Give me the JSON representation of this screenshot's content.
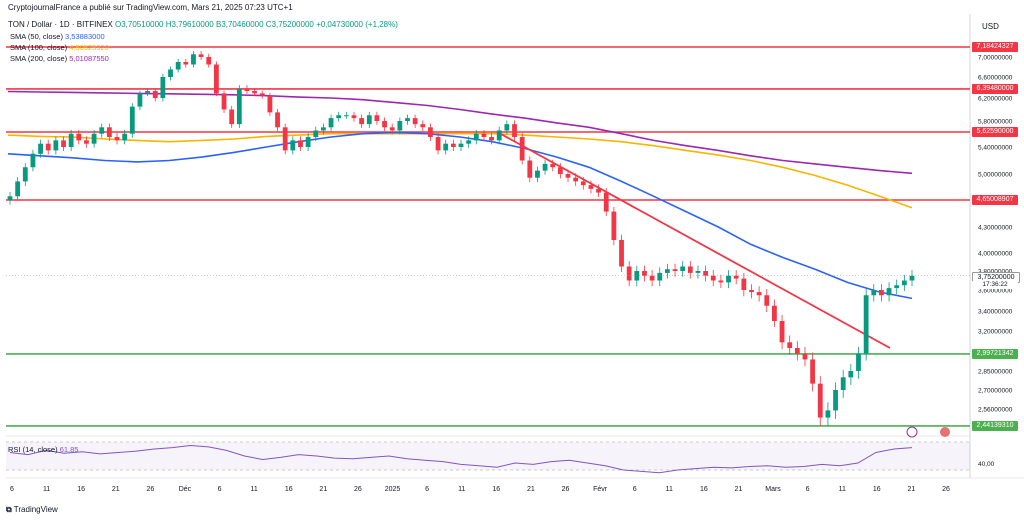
{
  "header": {
    "published": "CryptojournalFrance a publié sur TradingView.com, Mars 21, 2025 07:23 UTC+1",
    "symbol": "TON / Dollar · 1D · BITFINEX",
    "ohlc": "O3,70510000 H3,79610000 B3,70460000 C3,75200000 +0,04730000 (+1,28%)"
  },
  "indicators": {
    "sma50_label": "SMA (50, close)",
    "sma50_value": "3,53883000",
    "sma100_label": "SMA (100, close)",
    "sma100_value": "4,50525920",
    "sma200_label": "SMA (200, close)",
    "sma200_value": "5,01087550",
    "rsi_label": "RSI (14, close)",
    "rsi_value": "61,85"
  },
  "currency": "USD",
  "colors": {
    "up": "#089981",
    "down": "#f23645",
    "sma50": "#2962ff",
    "sma100": "#f7b500",
    "sma200": "#9c27b0",
    "resistance": "#f23645",
    "support": "#4caf50",
    "trendline": "#f23645"
  },
  "price_tags": {
    "r1": "7,18424327",
    "r2": "6,39480000",
    "r3": "5,62590000",
    "r4": "4,65008907",
    "current": "3,75200000",
    "countdown": "17:36:22",
    "s1": "2,99721342",
    "s2": "2,44139310"
  },
  "footer": {
    "brand": "TradingView"
  },
  "chart_data": {
    "type": "candlestick",
    "x": [
      "6",
      "11",
      "16",
      "21",
      "26",
      "Déc",
      "6",
      "11",
      "16",
      "21",
      "26",
      "2025",
      "6",
      "11",
      "16",
      "21",
      "26",
      "Févr",
      "6",
      "11",
      "16",
      "21",
      "Mars",
      "6",
      "11",
      "16",
      "21",
      "26"
    ],
    "y_ticks": [
      "7,00000000",
      "6,60000000",
      "6,20000000",
      "5,80000000",
      "5,40000000",
      "5,00000000",
      "4,30000000",
      "4,00000000",
      "3,80000000",
      "3,60000000",
      "3,40000000",
      "3,20000000",
      "2,85000000",
      "2,70000000",
      "2,56000000"
    ],
    "resistance_levels": [
      7.18424327,
      6.3948,
      5.6259,
      4.65008907
    ],
    "support_levels": [
      2.99721342,
      2.4413931
    ],
    "last_close": 3.752,
    "closes": [
      4.7,
      4.9,
      5.1,
      5.3,
      5.45,
      5.35,
      5.5,
      5.4,
      5.6,
      5.5,
      5.45,
      5.6,
      5.7,
      5.55,
      5.5,
      5.6,
      6.05,
      6.3,
      6.35,
      6.2,
      6.6,
      6.75,
      6.9,
      6.85,
      7.05,
      7.0,
      6.85,
      6.3,
      6.0,
      5.75,
      6.4,
      6.35,
      6.3,
      6.25,
      5.95,
      5.7,
      5.35,
      5.5,
      5.4,
      5.55,
      5.65,
      5.7,
      5.85,
      5.9,
      5.9,
      5.85,
      5.75,
      5.9,
      5.8,
      5.7,
      5.65,
      5.8,
      5.85,
      5.75,
      5.7,
      5.55,
      5.35,
      5.45,
      5.4,
      5.45,
      5.5,
      5.6,
      5.55,
      5.5,
      5.65,
      5.75,
      5.55,
      5.2,
      4.95,
      5.05,
      5.15,
      5.1,
      5.0,
      4.95,
      4.9,
      4.85,
      4.8,
      4.75,
      4.5,
      4.15,
      3.85,
      3.7,
      3.8,
      3.75,
      3.7,
      3.78,
      3.82,
      3.8,
      3.85,
      3.78,
      3.8,
      3.75,
      3.7,
      3.68,
      3.75,
      3.72,
      3.6,
      3.58,
      3.55,
      3.45,
      3.3,
      3.1,
      3.05,
      3.0,
      2.95,
      2.75,
      2.5,
      2.55,
      2.7,
      2.8,
      2.85,
      3.0,
      3.55,
      3.6,
      3.55,
      3.62,
      3.65,
      3.7,
      3.75
    ],
    "sma50": [
      5.3,
      5.27,
      5.24,
      5.2,
      5.18,
      5.2,
      5.25,
      5.32,
      5.4,
      5.48,
      5.55,
      5.6,
      5.62,
      5.6,
      5.55,
      5.48,
      5.38,
      5.25,
      5.1,
      4.9,
      4.7,
      4.5,
      4.3,
      4.1,
      3.95,
      3.82,
      3.68,
      3.58,
      3.52
    ],
    "sma100": [
      5.58,
      5.56,
      5.55,
      5.52,
      5.5,
      5.48,
      5.5,
      5.52,
      5.56,
      5.58,
      5.6,
      5.6,
      5.6,
      5.6,
      5.6,
      5.6,
      5.58,
      5.55,
      5.52,
      5.48,
      5.42,
      5.35,
      5.28,
      5.2,
      5.1,
      4.98,
      4.85,
      4.7,
      4.55
    ],
    "sma200": [
      6.34,
      6.33,
      6.32,
      6.31,
      6.3,
      6.29,
      6.28,
      6.27,
      6.25,
      6.22,
      6.2,
      6.17,
      6.12,
      6.07,
      6.0,
      5.92,
      5.85,
      5.77,
      5.7,
      5.6,
      5.5,
      5.42,
      5.35,
      5.27,
      5.2,
      5.15,
      5.1,
      5.05,
      5.01
    ],
    "rsi": [
      55,
      52,
      58,
      54,
      56,
      53,
      55,
      57,
      60,
      62,
      65,
      63,
      58,
      50,
      45,
      48,
      52,
      50,
      47,
      46,
      48,
      50,
      46,
      44,
      42,
      38,
      36,
      34,
      40,
      38,
      42,
      44,
      40,
      36,
      30,
      28,
      26,
      30,
      32,
      34,
      33,
      35,
      36,
      34,
      35,
      38,
      36,
      40,
      55,
      60,
      62
    ]
  }
}
